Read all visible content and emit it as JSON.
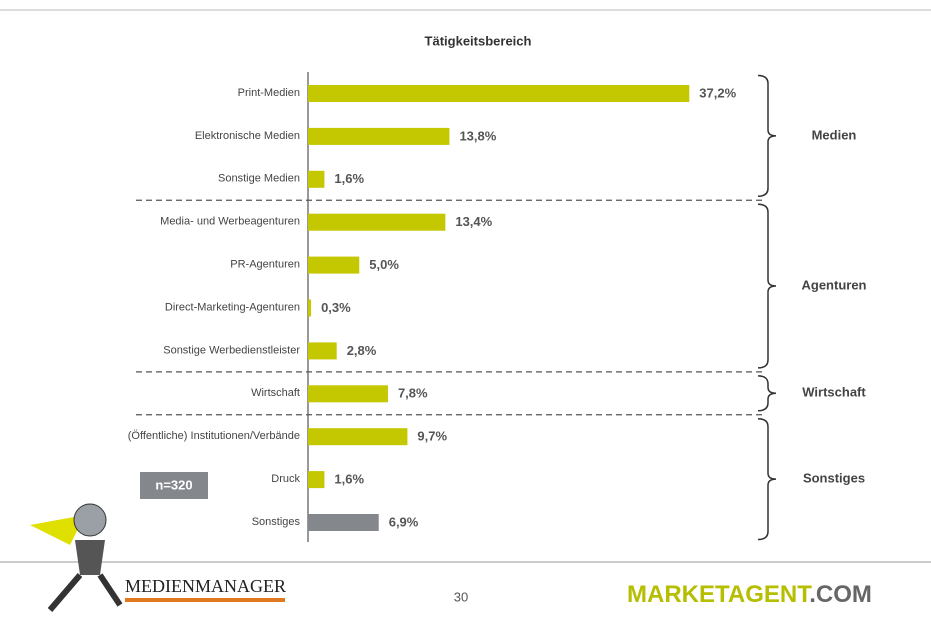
{
  "chart_data": {
    "type": "bar",
    "orientation": "horizontal",
    "title": "Tätigkeitsbereich",
    "categories": [
      "Print-Medien",
      "Elektronische Medien",
      "Sonstige Medien",
      "Media- und Werbeagenturen",
      "PR-Agenturen",
      "Direct-Marketing-Agenturen",
      "Sonstige Werbedienstleister",
      "Wirtschaft",
      "(Öffentliche) Institutionen/Verbände",
      "Druck",
      "Sonstiges"
    ],
    "values": [
      37.2,
      13.8,
      1.6,
      13.4,
      5.0,
      0.3,
      2.8,
      7.8,
      9.7,
      1.6,
      6.9
    ],
    "value_labels": [
      "37,2%",
      "13,8%",
      "1,6%",
      "13,4%",
      "5,0%",
      "0,3%",
      "2,8%",
      "7,8%",
      "9,7%",
      "1,6%",
      "6,9%"
    ],
    "colors": [
      "#c3c800",
      "#c3c800",
      "#c3c800",
      "#c3c800",
      "#c3c800",
      "#c3c800",
      "#c3c800",
      "#c3c800",
      "#c3c800",
      "#c3c800",
      "#84878c"
    ],
    "xlim": [
      0,
      40
    ],
    "groups": [
      {
        "label": "Medien",
        "size": 3
      },
      {
        "label": "Agenturen",
        "size": 4
      },
      {
        "label": "Wirtschaft",
        "size": 1
      },
      {
        "label": "Sonstiges",
        "size": 3
      }
    ],
    "annotation": "n=320"
  },
  "footer": {
    "page": "30",
    "logo_left": "MEDIENMANAGER",
    "logo_right": "MARKETAGENT",
    "logo_right_suffix": ".COM"
  }
}
